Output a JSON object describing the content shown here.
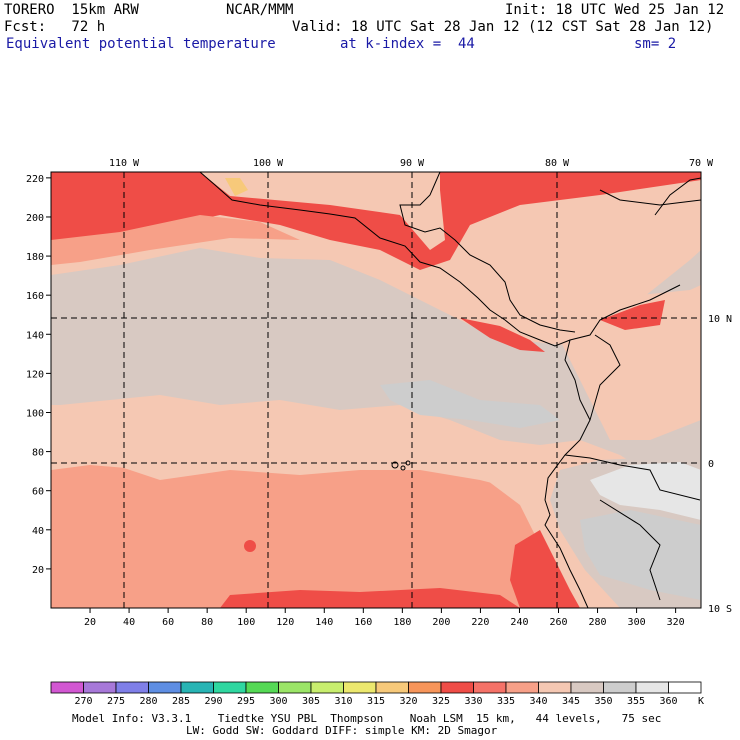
{
  "header": {
    "model": "TORERO  15km ARW",
    "source": "NCAR/MMM",
    "init": "Init: 18 UTC Wed 25 Jan 12",
    "forecast": "Fcst:   72 h",
    "valid": "Valid: 18 UTC Sat 28 Jan 12 (12 CST Sat 28 Jan 12)",
    "field": "Equivalent potential temperature",
    "level": "at k-index =  44",
    "smoothing": "sm= 2"
  },
  "map": {
    "lon_labels": [
      "110 W",
      "100 W",
      "90 W",
      "80 W",
      "70 W"
    ],
    "lat_labels": [
      "10 N",
      "0",
      "10 S"
    ],
    "y_ticks": [
      "20",
      "40",
      "60",
      "80",
      "100",
      "120",
      "140",
      "160",
      "180",
      "200",
      "220"
    ],
    "x_ticks": [
      "20",
      "40",
      "60",
      "80",
      "100",
      "120",
      "140",
      "160",
      "180",
      "200",
      "220",
      "240",
      "260",
      "280",
      "300",
      "320"
    ]
  },
  "colorbar": {
    "labels": [
      "270",
      "275",
      "280",
      "285",
      "290",
      "295",
      "300",
      "305",
      "310",
      "315",
      "320",
      "325",
      "330",
      "335",
      "340",
      "345",
      "350",
      "355",
      "360"
    ],
    "unit": "K",
    "colors": [
      "#d257d2",
      "#a778d8",
      "#7f7fe8",
      "#5e8ee3",
      "#28b4b4",
      "#2fd7a0",
      "#55d955",
      "#9be567",
      "#c8ee6e",
      "#ece86e",
      "#f7c97a",
      "#f7955a",
      "#ef4d47",
      "#f57268",
      "#f7a088",
      "#f5c8b3",
      "#d8c9c2",
      "#cdcdcd",
      "#e6e6e6",
      "#ffffff"
    ]
  },
  "footer": {
    "line1": "Model Info: V3.3.1    Tiedtke YSU PBL  Thompson    Noah LSM  15 km,   44 levels,   75 sec",
    "line2": "LW: Godd SW: Goddard DIFF: simple KM: 2D Smagor"
  }
}
